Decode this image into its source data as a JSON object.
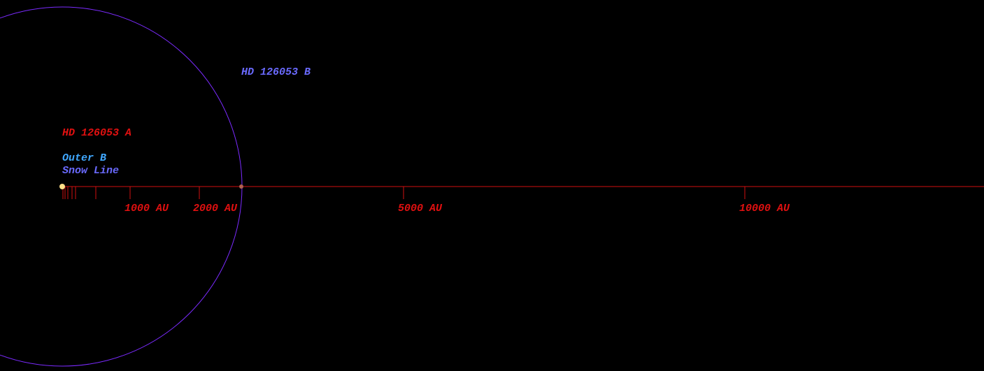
{
  "labels": {
    "companion": "HD 126053 B",
    "primary": "HD 126053 A",
    "outer_zone": "Outer B",
    "snow_line": "Snow Line"
  },
  "scale": {
    "ticks": [
      "1000 AU",
      "2000 AU",
      "5000 AU",
      "10000 AU"
    ]
  }
}
